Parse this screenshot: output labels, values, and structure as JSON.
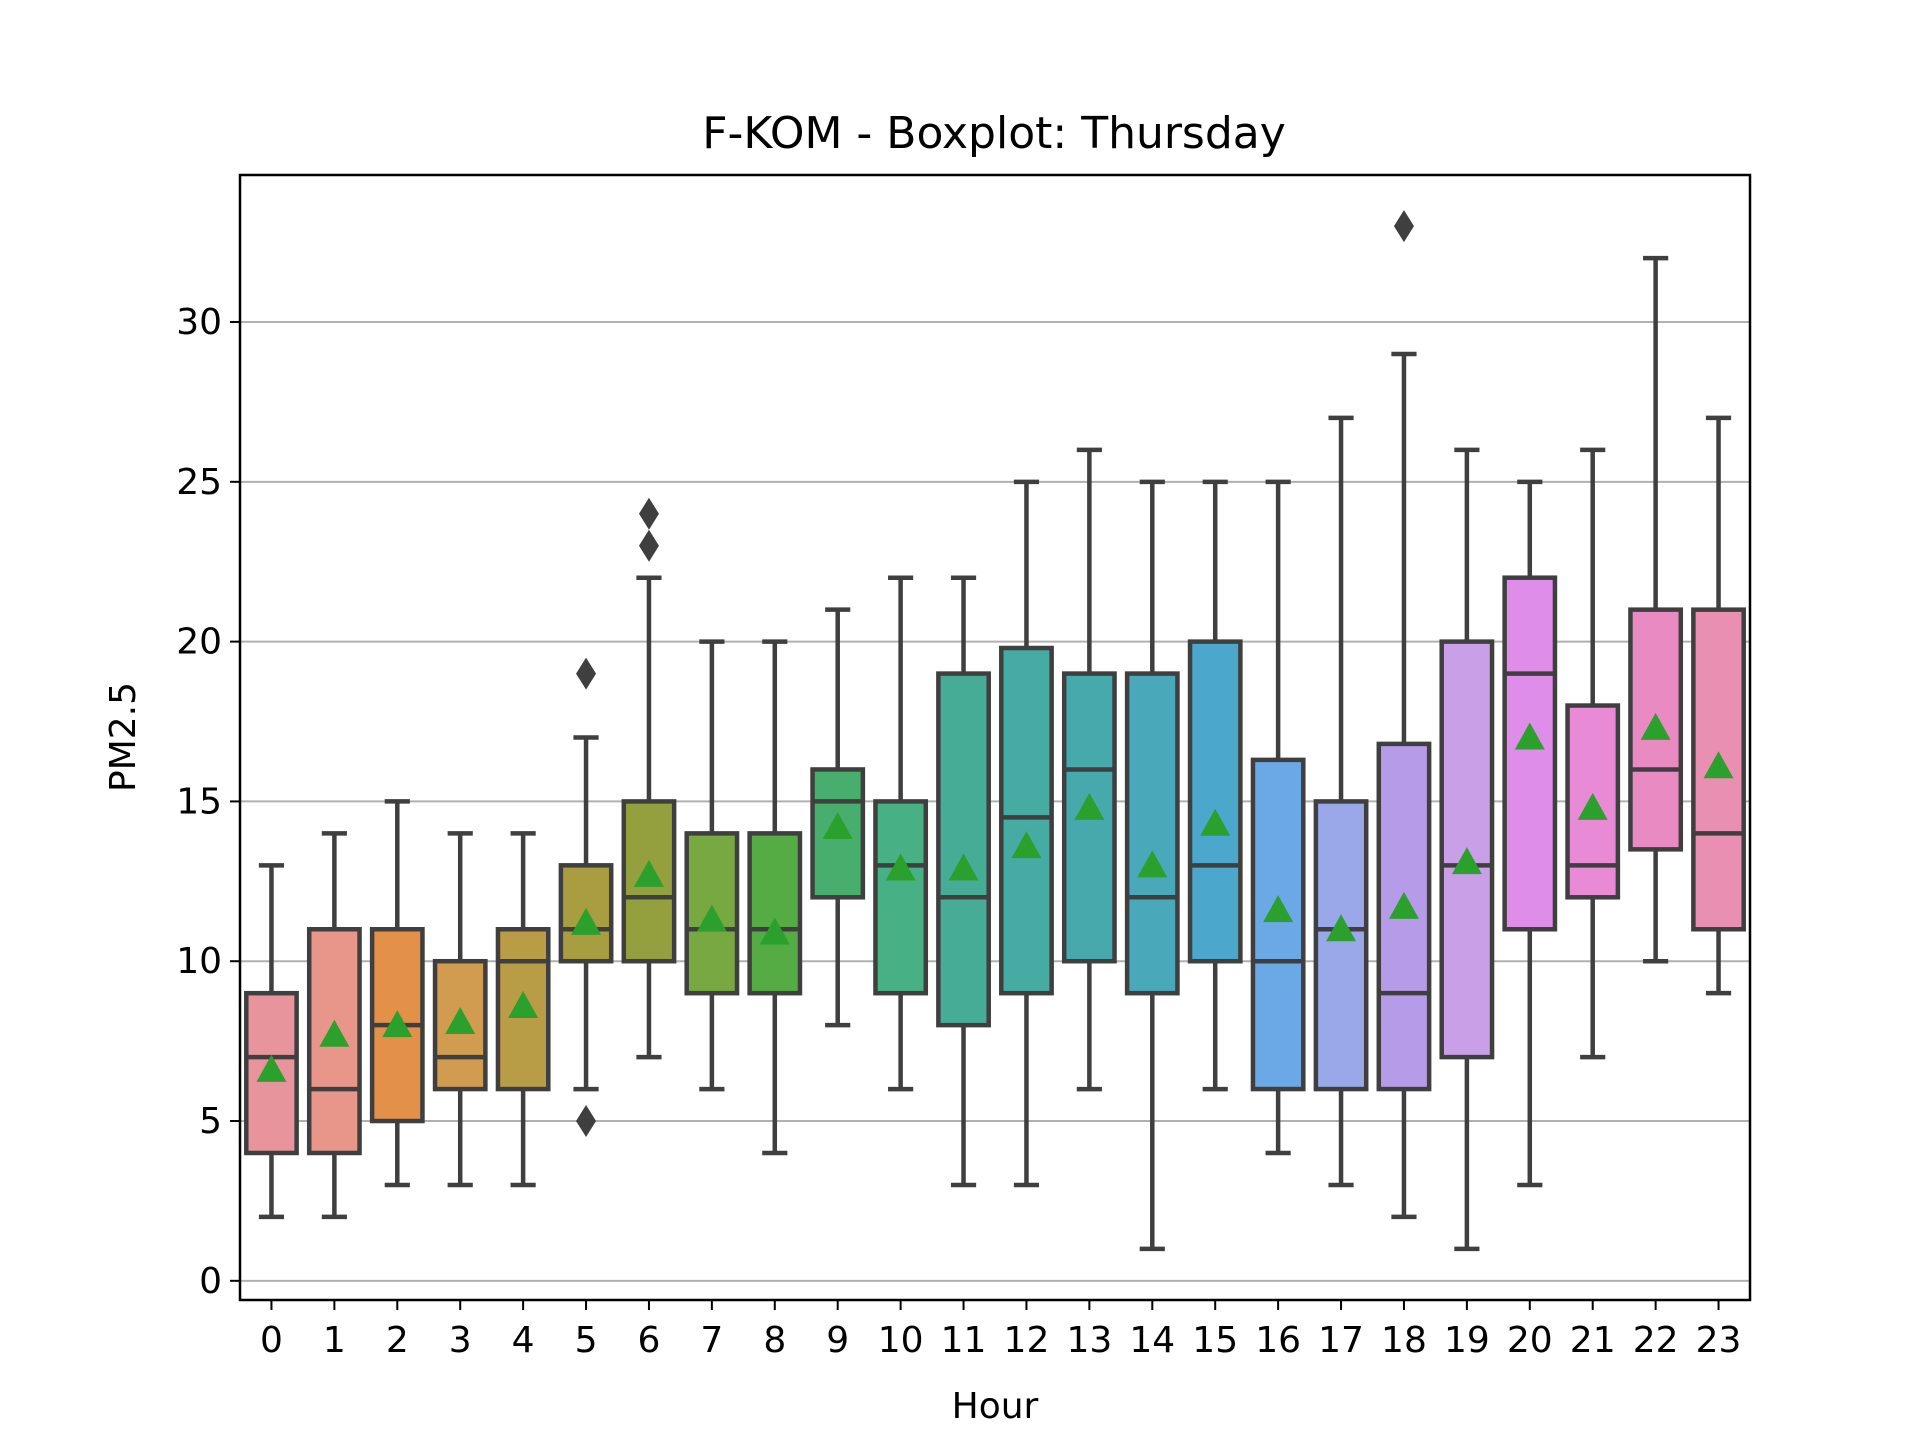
{
  "chart_data": {
    "type": "box",
    "title": "F-KOM - Boxplot: Thursday",
    "xlabel": "Hour",
    "ylabel": "PM2.5",
    "ylim": [
      -0.6,
      34.6
    ],
    "yticks": [
      0,
      5,
      10,
      15,
      20,
      25,
      30
    ],
    "grid": "y",
    "categories": [
      "0",
      "1",
      "2",
      "3",
      "4",
      "5",
      "6",
      "7",
      "8",
      "9",
      "10",
      "11",
      "12",
      "13",
      "14",
      "15",
      "16",
      "17",
      "18",
      "19",
      "20",
      "21",
      "22",
      "23"
    ],
    "boxes": [
      {
        "min": 2,
        "q1": 4,
        "median": 7,
        "q3": 9,
        "max": 13,
        "mean": 6.6,
        "fliers": [],
        "color": "#e8949c"
      },
      {
        "min": 2,
        "q1": 4,
        "median": 6,
        "q3": 11,
        "max": 14,
        "mean": 7.7,
        "fliers": [],
        "color": "#e8958a"
      },
      {
        "min": 3,
        "q1": 5,
        "median": 8,
        "q3": 11,
        "max": 15,
        "mean": 8.0,
        "fliers": [],
        "color": "#e39149"
      },
      {
        "min": 3,
        "q1": 6,
        "median": 7,
        "q3": 10,
        "max": 14,
        "mean": 8.1,
        "fliers": [],
        "color": "#d19c4f"
      },
      {
        "min": 3,
        "q1": 6,
        "median": 10,
        "q3": 11,
        "max": 14,
        "mean": 8.6,
        "fliers": [],
        "color": "#b99c46"
      },
      {
        "min": 6,
        "q1": 10,
        "median": 11,
        "q3": 13,
        "max": 17,
        "mean": 11.2,
        "fliers": [
          19,
          5
        ],
        "color": "#a89d40"
      },
      {
        "min": 7,
        "q1": 10,
        "median": 12,
        "q3": 15,
        "max": 22,
        "mean": 12.7,
        "fliers": [
          24,
          23
        ],
        "color": "#94a03e"
      },
      {
        "min": 6,
        "q1": 9,
        "median": 11,
        "q3": 14,
        "max": 20,
        "mean": 11.3,
        "fliers": [],
        "color": "#78a841"
      },
      {
        "min": 4,
        "q1": 9,
        "median": 11,
        "q3": 14,
        "max": 20,
        "mean": 10.9,
        "fliers": [],
        "color": "#55ac44"
      },
      {
        "min": 8,
        "q1": 12,
        "median": 15,
        "q3": 16,
        "max": 21,
        "mean": 14.2,
        "fliers": [],
        "color": "#48ae6e"
      },
      {
        "min": 6,
        "q1": 9,
        "median": 13,
        "q3": 15,
        "max": 22,
        "mean": 12.9,
        "fliers": [],
        "color": "#47b085"
      },
      {
        "min": 3,
        "q1": 8,
        "median": 12,
        "q3": 19,
        "max": 22,
        "mean": 12.9,
        "fliers": [],
        "color": "#47ac96"
      },
      {
        "min": 3,
        "q1": 9,
        "median": 14.5,
        "q3": 19.8,
        "max": 25,
        "mean": 13.6,
        "fliers": [],
        "color": "#46aba2"
      },
      {
        "min": 6,
        "q1": 10,
        "median": 16,
        "q3": 19,
        "max": 26,
        "mean": 14.8,
        "fliers": [],
        "color": "#46aaad"
      },
      {
        "min": 1,
        "q1": 9,
        "median": 12,
        "q3": 19,
        "max": 25,
        "mean": 13.0,
        "fliers": [],
        "color": "#49a8ba"
      },
      {
        "min": 6,
        "q1": 10,
        "median": 13,
        "q3": 20,
        "max": 25,
        "mean": 14.3,
        "fliers": [],
        "color": "#4ba7cb"
      },
      {
        "min": 4,
        "q1": 6,
        "median": 10,
        "q3": 16.3,
        "max": 25,
        "mean": 11.6,
        "fliers": [],
        "color": "#6aa9e6"
      },
      {
        "min": 3,
        "q1": 6,
        "median": 11,
        "q3": 15,
        "max": 27,
        "mean": 11.0,
        "fliers": [],
        "color": "#9aa7e9"
      },
      {
        "min": 2,
        "q1": 6,
        "median": 9,
        "q3": 16.8,
        "max": 29,
        "mean": 11.7,
        "fliers": [
          33
        ],
        "color": "#b69ce8"
      },
      {
        "min": 1,
        "q1": 7,
        "median": 13,
        "q3": 20,
        "max": 26,
        "mean": 13.1,
        "fliers": [],
        "color": "#c9a0e8"
      },
      {
        "min": 3,
        "q1": 11,
        "median": 19,
        "q3": 22,
        "max": 25,
        "mean": 17.0,
        "fliers": [],
        "color": "#de8ee8"
      },
      {
        "min": 7,
        "q1": 12,
        "median": 13,
        "q3": 18,
        "max": 26,
        "mean": 14.8,
        "fliers": [],
        "color": "#e88ad6"
      },
      {
        "min": 10,
        "q1": 13.5,
        "median": 16,
        "q3": 21,
        "max": 32,
        "mean": 17.3,
        "fliers": [],
        "color": "#ea8ac3"
      },
      {
        "min": 9,
        "q1": 11,
        "median": 14,
        "q3": 21,
        "max": 27,
        "mean": 16.1,
        "fliers": [],
        "color": "#e98fb2"
      }
    ]
  }
}
